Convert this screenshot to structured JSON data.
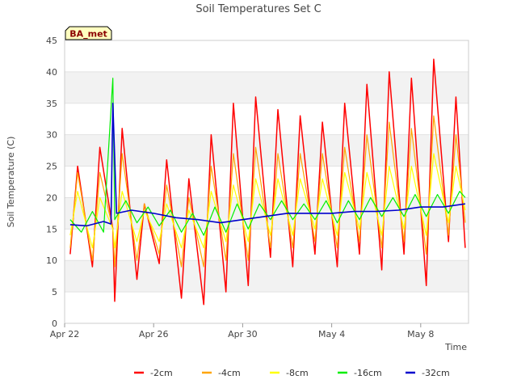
{
  "chart_data": {
    "type": "line",
    "title": "Soil Temperatures Set C",
    "xlabel": "Time",
    "ylabel": "Soil Temperature (C)",
    "badge": "BA_met",
    "ylim": [
      0,
      45
    ],
    "y_ticks": [
      0,
      5,
      10,
      15,
      20,
      25,
      30,
      35,
      40,
      45
    ],
    "xlim": [
      "2024-04-22",
      "2024-05-10"
    ],
    "x_ticks": [
      {
        "value": "2024-04-22",
        "label": "Apr 22"
      },
      {
        "value": "2024-04-26",
        "label": "Apr 26"
      },
      {
        "value": "2024-04-30",
        "label": "Apr 30"
      },
      {
        "value": "2024-05-04",
        "label": "May 4"
      },
      {
        "value": "2024-05-08",
        "label": "May 8"
      }
    ],
    "grid": "horizontal alternating bands",
    "legend_position": "bottom",
    "series": [
      {
        "name": "-2cm",
        "color": "#ff0000",
        "width": 1.5,
        "x": [
          "2024-04-22 06:00",
          "2024-04-22 14:00",
          "2024-04-23 06:00",
          "2024-04-23 14:00",
          "2024-04-24 04:00",
          "2024-04-24 06:00",
          "2024-04-24 14:00",
          "2024-04-25 06:00",
          "2024-04-25 14:00",
          "2024-04-26 06:00",
          "2024-04-26 14:00",
          "2024-04-27 06:00",
          "2024-04-27 14:00",
          "2024-04-28 06:00",
          "2024-04-28 14:00",
          "2024-04-29 06:00",
          "2024-04-29 14:00",
          "2024-04-30 06:00",
          "2024-04-30 14:00",
          "2024-05-01 06:00",
          "2024-05-01 14:00",
          "2024-05-02 06:00",
          "2024-05-02 14:00",
          "2024-05-03 06:00",
          "2024-05-03 14:00",
          "2024-05-04 06:00",
          "2024-05-04 14:00",
          "2024-05-05 06:00",
          "2024-05-05 14:00",
          "2024-05-06 06:00",
          "2024-05-06 14:00",
          "2024-05-07 06:00",
          "2024-05-07 14:00",
          "2024-05-08 06:00",
          "2024-05-08 14:00",
          "2024-05-09 06:00",
          "2024-05-09 14:00",
          "2024-05-10 00:00"
        ],
        "y": [
          11,
          25,
          9,
          28,
          15,
          3.5,
          31,
          7,
          19,
          9.5,
          26,
          4,
          23,
          3,
          30,
          5,
          35,
          6,
          36,
          10.5,
          34,
          9,
          33,
          11,
          32,
          9,
          35,
          11,
          38,
          8.5,
          40,
          11,
          39,
          6,
          42,
          13,
          36,
          12
        ]
      },
      {
        "name": "-4cm",
        "color": "#ffa500",
        "width": 1.2,
        "x": [
          "2024-04-22 06:00",
          "2024-04-22 14:00",
          "2024-04-23 06:00",
          "2024-04-23 14:00",
          "2024-04-24 04:00",
          "2024-04-24 06:00",
          "2024-04-24 14:00",
          "2024-04-25 06:00",
          "2024-04-25 14:00",
          "2024-04-26 06:00",
          "2024-04-26 14:00",
          "2024-04-27 06:00",
          "2024-04-27 14:00",
          "2024-04-28 06:00",
          "2024-04-28 14:00",
          "2024-04-29 06:00",
          "2024-04-29 14:00",
          "2024-04-30 06:00",
          "2024-04-30 14:00",
          "2024-05-01 06:00",
          "2024-05-01 14:00",
          "2024-05-02 06:00",
          "2024-05-02 14:00",
          "2024-05-03 06:00",
          "2024-05-03 14:00",
          "2024-05-04 06:00",
          "2024-05-04 14:00",
          "2024-05-05 06:00",
          "2024-05-05 14:00",
          "2024-05-06 06:00",
          "2024-05-06 14:00",
          "2024-05-07 06:00",
          "2024-05-07 14:00",
          "2024-05-08 06:00",
          "2024-05-08 14:00",
          "2024-05-09 06:00",
          "2024-05-09 14:00",
          "2024-05-10 00:00"
        ],
        "y": [
          12,
          24,
          10,
          24,
          15,
          9,
          27,
          10,
          19,
          11,
          22,
          9,
          20,
          9,
          25,
          10,
          27,
          10,
          28,
          12,
          27,
          12,
          27,
          13,
          27,
          12,
          28,
          13,
          30,
          12,
          32,
          13,
          31,
          11,
          33,
          14,
          30,
          16
        ]
      },
      {
        "name": "-8cm",
        "color": "#ffff00",
        "width": 1.2,
        "x": [
          "2024-04-22 06:00",
          "2024-04-22 14:00",
          "2024-04-23 06:00",
          "2024-04-23 14:00",
          "2024-04-24 04:00",
          "2024-04-24 06:00",
          "2024-04-24 14:00",
          "2024-04-25 06:00",
          "2024-04-25 14:00",
          "2024-04-26 06:00",
          "2024-04-26 14:00",
          "2024-04-27 06:00",
          "2024-04-27 14:00",
          "2024-04-28 06:00",
          "2024-04-28 14:00",
          "2024-04-29 06:00",
          "2024-04-29 14:00",
          "2024-04-30 06:00",
          "2024-04-30 14:00",
          "2024-05-01 06:00",
          "2024-05-01 14:00",
          "2024-05-02 06:00",
          "2024-05-02 14:00",
          "2024-05-03 06:00",
          "2024-05-03 14:00",
          "2024-05-04 06:00",
          "2024-05-04 14:00",
          "2024-05-05 06:00",
          "2024-05-05 14:00",
          "2024-05-06 06:00",
          "2024-05-06 14:00",
          "2024-05-07 06:00",
          "2024-05-07 14:00",
          "2024-05-08 06:00",
          "2024-05-08 14:00",
          "2024-05-09 06:00",
          "2024-05-09 14:00",
          "2024-05-10 00:00"
        ],
        "y": [
          14,
          21,
          12,
          20,
          15,
          12,
          21,
          13,
          18,
          13,
          19,
          12,
          18,
          12,
          21,
          13,
          22,
          13,
          23,
          14,
          23,
          14,
          23,
          15,
          23,
          14,
          24,
          15,
          24,
          14,
          25,
          15,
          25,
          14,
          27,
          16,
          25,
          18
        ]
      },
      {
        "name": "-16cm",
        "color": "#00ee00",
        "width": 1.2,
        "x": [
          "2024-04-22 06:00",
          "2024-04-22 18:00",
          "2024-04-23 06:00",
          "2024-04-23 18:00",
          "2024-04-24 04:00",
          "2024-04-24 06:00",
          "2024-04-24 18:00",
          "2024-04-25 06:00",
          "2024-04-25 18:00",
          "2024-04-26 06:00",
          "2024-04-26 18:00",
          "2024-04-27 06:00",
          "2024-04-27 18:00",
          "2024-04-28 06:00",
          "2024-04-28 18:00",
          "2024-04-29 06:00",
          "2024-04-29 18:00",
          "2024-04-30 06:00",
          "2024-04-30 18:00",
          "2024-05-01 06:00",
          "2024-05-01 18:00",
          "2024-05-02 06:00",
          "2024-05-02 18:00",
          "2024-05-03 06:00",
          "2024-05-03 18:00",
          "2024-05-04 06:00",
          "2024-05-04 18:00",
          "2024-05-05 06:00",
          "2024-05-05 18:00",
          "2024-05-06 06:00",
          "2024-05-06 18:00",
          "2024-05-07 06:00",
          "2024-05-07 18:00",
          "2024-05-08 06:00",
          "2024-05-08 18:00",
          "2024-05-09 06:00",
          "2024-05-09 18:00",
          "2024-05-10 00:00"
        ],
        "y": [
          16.5,
          14.5,
          17.8,
          14.5,
          39,
          16.5,
          19.5,
          16,
          18.5,
          15.5,
          18,
          14.5,
          17.5,
          14,
          18.5,
          14.5,
          19,
          15,
          19,
          16.5,
          19.5,
          16.5,
          19,
          16.5,
          19.5,
          16,
          19.5,
          16.5,
          20,
          17,
          20,
          17,
          20.5,
          17,
          20.5,
          17.5,
          21,
          20
        ]
      },
      {
        "name": "-32cm",
        "color": "#0000cc",
        "width": 1.6,
        "x": [
          "2024-04-22 06:00",
          "2024-04-23 00:00",
          "2024-04-23 18:00",
          "2024-04-24 02:00",
          "2024-04-24 04:00",
          "2024-04-24 08:00",
          "2024-04-25 00:00",
          "2024-04-26 00:00",
          "2024-04-27 00:00",
          "2024-04-28 00:00",
          "2024-04-29 00:00",
          "2024-04-30 00:00",
          "2024-05-01 00:00",
          "2024-05-02 00:00",
          "2024-05-03 00:00",
          "2024-05-04 00:00",
          "2024-05-05 00:00",
          "2024-05-06 00:00",
          "2024-05-07 00:00",
          "2024-05-08 00:00",
          "2024-05-09 00:00",
          "2024-05-10 00:00"
        ],
        "y": [
          15.7,
          15.5,
          16.2,
          15.8,
          35,
          17.5,
          18,
          17.5,
          16.8,
          16.5,
          16,
          16.5,
          17,
          17.5,
          17.5,
          17.5,
          17.8,
          17.8,
          18,
          18.5,
          18.5,
          19
        ]
      }
    ]
  }
}
